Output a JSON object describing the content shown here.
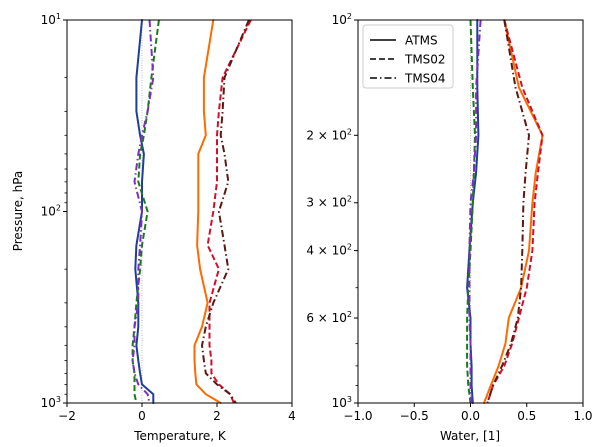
{
  "chart_data": [
    {
      "type": "line",
      "panel": "left",
      "xlabel": "Temperature, K",
      "ylabel": "Pressure, hPa",
      "xlim": [
        -2,
        4
      ],
      "ylim": [
        1000,
        10
      ],
      "yscale": "log",
      "y_inverted": true,
      "xticks": [
        -2,
        0,
        2,
        4
      ],
      "xtick_labels": [
        "−2",
        "0",
        "2",
        "4"
      ],
      "yticks": [
        10,
        100,
        1000
      ],
      "ytick_labels": [
        {
          "base": "10",
          "exp": "1"
        },
        {
          "base": "10",
          "exp": "2"
        },
        {
          "base": "10",
          "exp": "3"
        }
      ],
      "reference_line_x": 0,
      "pressure": [
        10,
        20,
        30,
        40,
        50,
        70,
        100,
        150,
        200,
        300,
        400,
        500,
        600,
        700,
        800,
        900,
        1000
      ],
      "series": [
        {
          "name": "ATMS (blue)",
          "style": "solid",
          "color": "#1f3d99",
          "values": [
            0.0,
            -0.15,
            -0.15,
            -0.05,
            0.05,
            0.0,
            0.0,
            -0.15,
            -0.18,
            -0.1,
            -0.1,
            -0.15,
            -0.1,
            -0.05,
            0.0,
            0.3,
            0.3
          ]
        },
        {
          "name": "TMS02 (green)",
          "style": "dashed",
          "color": "#1a7a1a",
          "values": [
            0.45,
            0.25,
            0.15,
            0.05,
            -0.05,
            -0.1,
            0.15,
            0.0,
            -0.05,
            -0.15,
            -0.2,
            -0.25,
            -0.25,
            -0.2,
            -0.2,
            -0.2,
            -0.15
          ]
        },
        {
          "name": "TMS04 (purple)",
          "style": "dashdot",
          "color": "#7b2fbf",
          "values": [
            0.2,
            0.3,
            0.15,
            0.0,
            -0.1,
            -0.2,
            0.0,
            -0.05,
            -0.1,
            -0.1,
            -0.2,
            -0.2,
            -0.25,
            -0.2,
            -0.1,
            0.15,
            0.2
          ]
        },
        {
          "name": "ATMS (orange)",
          "style": "solid",
          "color": "#ff6a00",
          "values": [
            1.9,
            1.65,
            1.65,
            1.7,
            1.5,
            1.5,
            1.5,
            1.47,
            1.55,
            1.75,
            1.6,
            1.4,
            1.4,
            1.42,
            1.45,
            1.7,
            2.1
          ]
        },
        {
          "name": "TMS02 (red)",
          "style": "dashed",
          "color": "#d0102a",
          "values": [
            2.9,
            2.15,
            2.05,
            2.0,
            2.0,
            2.0,
            1.9,
            1.75,
            2.05,
            1.8,
            1.8,
            1.8,
            1.85,
            1.85,
            2.05,
            2.35,
            2.45
          ]
        },
        {
          "name": "TMS04 (brown)",
          "style": "dashdot",
          "color": "#5a1a10",
          "values": [
            2.85,
            2.2,
            2.15,
            2.1,
            2.2,
            2.3,
            2.05,
            2.2,
            2.3,
            1.9,
            1.7,
            1.6,
            1.65,
            1.7,
            2.0,
            2.35,
            2.5
          ]
        }
      ]
    },
    {
      "type": "line",
      "panel": "right",
      "xlabel": "Water, [1]",
      "xlim": [
        -1.0,
        1.0
      ],
      "ylim": [
        1000,
        100
      ],
      "yscale": "log",
      "y_inverted": true,
      "xticks": [
        -1.0,
        -0.5,
        0.0,
        0.5,
        1.0
      ],
      "xtick_labels": [
        "−1.0",
        "−0.5",
        "0.0",
        "0.5",
        "1.0"
      ],
      "yticks": [
        100,
        200,
        300,
        400,
        600,
        1000
      ],
      "ytick_labels": [
        {
          "base": "10",
          "exp": "2"
        },
        {
          "base": "2 × 10",
          "exp": "2"
        },
        {
          "base": "3 × 10",
          "exp": "2"
        },
        {
          "base": "4 × 10",
          "exp": "2"
        },
        {
          "base": "6 × 10",
          "exp": "2"
        },
        {
          "base": "10",
          "exp": "3"
        }
      ],
      "reference_line_x": 0,
      "legend": {
        "placement": "top-left",
        "entries": [
          {
            "label": "ATMS",
            "style": "solid"
          },
          {
            "label": "TMS02",
            "style": "dashed"
          },
          {
            "label": "TMS04",
            "style": "dashdot"
          }
        ]
      },
      "pressure": [
        100,
        150,
        200,
        250,
        300,
        400,
        500,
        600,
        700,
        800,
        900,
        1000
      ],
      "series": [
        {
          "name": "ATMS (blue)",
          "style": "solid",
          "color": "#1f3d99",
          "values": [
            0.06,
            0.06,
            0.07,
            0.05,
            0.02,
            -0.01,
            -0.03,
            0.0,
            0.0,
            0.01,
            0.01,
            0.02
          ]
        },
        {
          "name": "TMS02 (green)",
          "style": "dashed",
          "color": "#1a7a1a",
          "values": [
            0.0,
            0.02,
            0.04,
            0.03,
            0.02,
            0.0,
            -0.02,
            -0.03,
            -0.03,
            -0.03,
            -0.02,
            0.0
          ]
        },
        {
          "name": "TMS04 (purple)",
          "style": "dashdot",
          "color": "#7b2fbf",
          "values": [
            0.09,
            0.05,
            0.05,
            0.03,
            0.0,
            -0.01,
            -0.01,
            -0.01,
            0.0,
            0.0,
            0.0,
            0.01
          ]
        },
        {
          "name": "ATMS (orange)",
          "style": "solid",
          "color": "#ff6a00",
          "values": [
            0.3,
            0.43,
            0.64,
            0.58,
            0.55,
            0.52,
            0.45,
            0.34,
            0.31,
            0.25,
            0.18,
            0.12
          ]
        },
        {
          "name": "TMS02 (red)",
          "style": "dashed",
          "color": "#d0102a",
          "values": [
            0.3,
            0.46,
            0.64,
            0.6,
            0.57,
            0.55,
            0.5,
            0.43,
            0.37,
            0.3,
            0.2,
            0.15
          ]
        },
        {
          "name": "TMS04 (brown)",
          "style": "dashdot",
          "color": "#5a1a10",
          "values": [
            0.3,
            0.4,
            0.52,
            0.49,
            0.47,
            0.46,
            0.45,
            0.42,
            0.36,
            0.28,
            0.2,
            0.15
          ]
        }
      ]
    }
  ]
}
